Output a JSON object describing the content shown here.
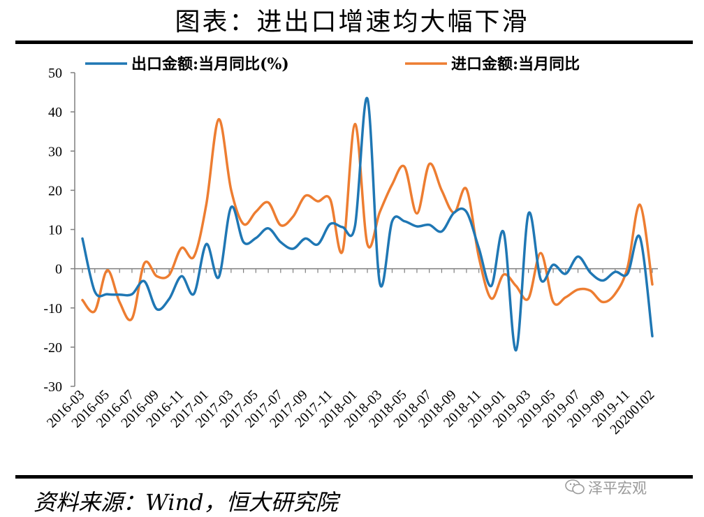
{
  "header": {
    "title": "图表：进出口增速均大幅下滑"
  },
  "footer": {
    "source": "资料来源：Wind，恒大研究院",
    "watermark": "泽平宏观"
  },
  "colors": {
    "export": "#1f77b4",
    "import": "#ed7d31",
    "axis": "#7f7f7f"
  },
  "chart_data": {
    "type": "line",
    "title": "图表：进出口增速均大幅下滑",
    "ylim": [
      -30,
      50
    ],
    "yticks": [
      50,
      40,
      30,
      20,
      10,
      0,
      -10,
      -20,
      -30
    ],
    "xtick_labels": [
      "2016-03",
      "2016-05",
      "2016-07",
      "2016-09",
      "2016-11",
      "2017-01",
      "2017-03",
      "2017-05",
      "2017-07",
      "2017-09",
      "2017-11",
      "2018-01",
      "2018-03",
      "2018-05",
      "2018-07",
      "2018-09",
      "2018-11",
      "2019-01",
      "2019-03",
      "2019-05",
      "2019-07",
      "2019-09",
      "2019-11",
      "20200102"
    ],
    "x": [
      "2016-03",
      "2016-04",
      "2016-05",
      "2016-06",
      "2016-07",
      "2016-08",
      "2016-09",
      "2016-10",
      "2016-11",
      "2016-12",
      "2017-01",
      "2017-02",
      "2017-03",
      "2017-04",
      "2017-05",
      "2017-06",
      "2017-07",
      "2017-08",
      "2017-09",
      "2017-10",
      "2017-11",
      "2017-12",
      "2018-01",
      "2018-02",
      "2018-03",
      "2018-04",
      "2018-05",
      "2018-06",
      "2018-07",
      "2018-08",
      "2018-09",
      "2018-10",
      "2018-11",
      "2018-12",
      "2019-01",
      "2019-02",
      "2019-03",
      "2019-04",
      "2019-05",
      "2019-06",
      "2019-07",
      "2019-08",
      "2019-09",
      "2019-10",
      "2019-11",
      "2019-12",
      "20200102"
    ],
    "series": [
      {
        "name": "出口金额:当月同比(%)",
        "values": [
          7.7,
          -5.8,
          -6.5,
          -6.6,
          -6.5,
          -3.2,
          -10.3,
          -7.7,
          -1.9,
          -6.4,
          6.3,
          -2.2,
          15.7,
          6.8,
          7.8,
          10.3,
          6.8,
          5.1,
          7.7,
          6.2,
          11.4,
          10.6,
          10.9,
          43.4,
          -3.6,
          12.1,
          12.1,
          10.8,
          11.2,
          9.5,
          14.3,
          14.5,
          5.2,
          -4.4,
          9.3,
          -20.8,
          14.0,
          -2.8,
          1.0,
          -1.3,
          3.1,
          -1.0,
          -3.0,
          -0.8,
          -1.3,
          8.0,
          -17.2
        ]
      },
      {
        "name": "进口金额:当月同比",
        "values": [
          -8.0,
          -10.8,
          -0.4,
          -8.5,
          -12.7,
          1.4,
          -1.9,
          -1.6,
          5.3,
          3.1,
          16.4,
          38.1,
          20.1,
          11.4,
          14.5,
          16.9,
          11.1,
          13.3,
          18.6,
          17.2,
          17.7,
          4.5,
          36.9,
          6.3,
          14.4,
          21.5,
          26.0,
          14.1,
          26.7,
          20.0,
          14.3,
          20.3,
          2.9,
          -7.6,
          -1.5,
          -4.4,
          -7.6,
          4.0,
          -8.5,
          -7.3,
          -5.3,
          -5.6,
          -8.5,
          -6.4,
          0.3,
          16.3,
          -4.0
        ]
      }
    ]
  }
}
